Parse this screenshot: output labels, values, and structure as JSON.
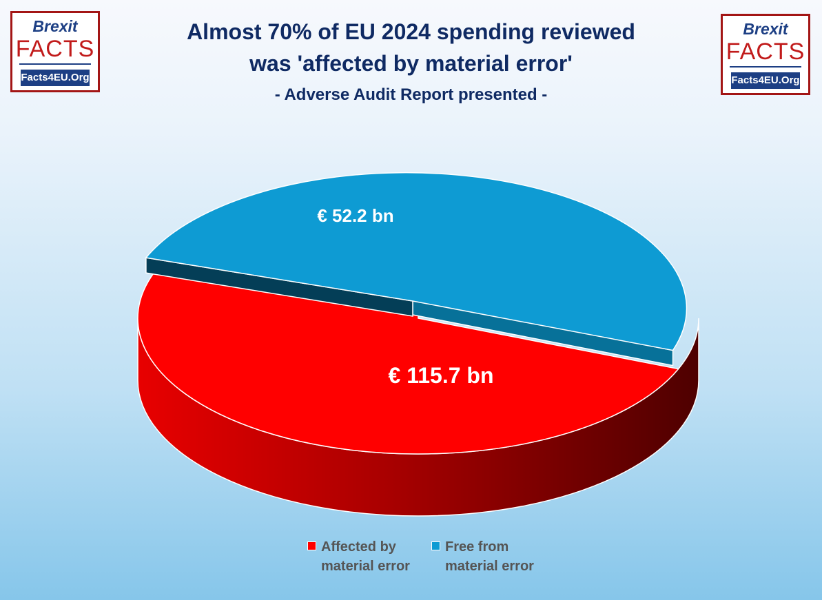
{
  "logo": {
    "line1": "Brexit",
    "line2": "FACTS",
    "line3": "Facts4EU.Org"
  },
  "title_line1": "Almost 70% of EU 2024 spending reviewed",
  "title_line2": "was 'affected by material error'",
  "subtitle": "- Adverse Audit Report presented -",
  "chart_data": {
    "type": "pie",
    "title": "Almost 70% of EU 2024 spending reviewed was 'affected by material error'",
    "subtitle": "- Adverse Audit Report presented -",
    "categories": [
      "Affected by material error",
      "Free from material error"
    ],
    "values": [
      115.7,
      52.2
    ],
    "data_labels": [
      "€ 115.7 bn",
      "€ 52.2 bn"
    ],
    "colors": [
      "#ff0000",
      "#0e9bd3"
    ],
    "legend_position": "bottom",
    "style": "3d-exploded"
  },
  "legend": [
    {
      "line1": "Affected by",
      "line2": "material error",
      "color": "#ff0000"
    },
    {
      "line1": "Free from",
      "line2": "material error",
      "color": "#0e9bd3"
    }
  ]
}
